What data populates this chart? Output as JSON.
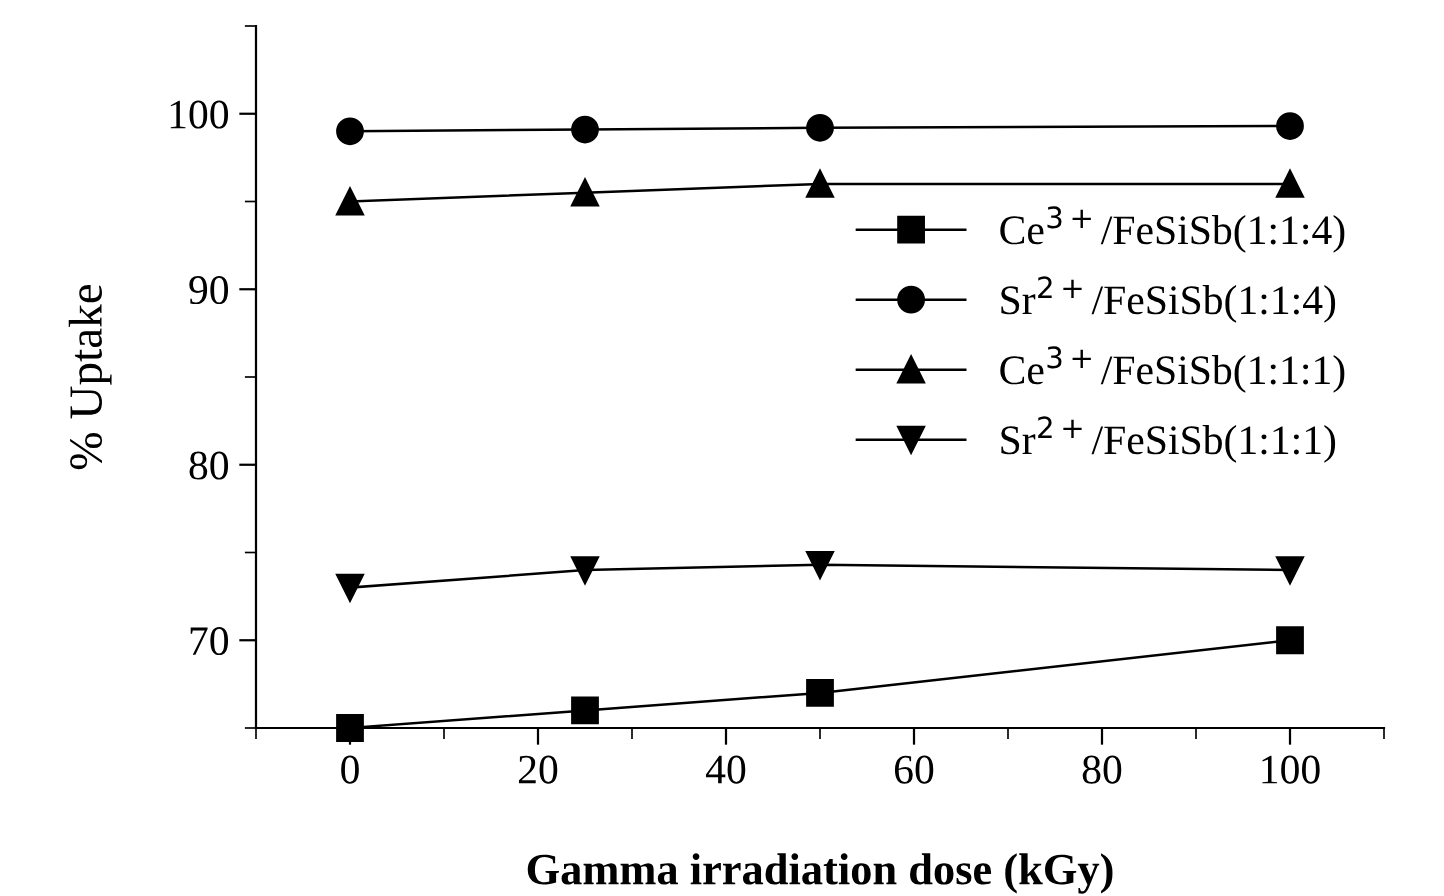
{
  "chart_data": {
    "type": "line",
    "xlabel": "Gamma irradiation dose (kGy)",
    "ylabel": "% Uptake",
    "x": [
      0,
      25,
      50,
      100
    ],
    "series": [
      {
        "name": "Ce$^{3+}$/FeSiSb(1:1:4)",
        "color": "#000000",
        "marker": "square",
        "values": [
          65,
          66,
          67,
          70
        ]
      },
      {
        "name": "Sr$^{2+}$/FeSiSb(1:1:4)",
        "color": "#000000",
        "marker": "circle",
        "values": [
          99,
          99.1,
          99.2,
          99.3
        ]
      },
      {
        "name": "Ce$^{3+}$/FeSiSb(1:1:1)",
        "color": "#000000",
        "marker": "triangle",
        "values": [
          95,
          95.5,
          96,
          96
        ]
      },
      {
        "name": "Sr$^{2+}$/FeSiSb(1:1:1)",
        "color": "#000000",
        "marker": "triangle_down",
        "values": [
          73,
          74,
          74.3,
          74
        ]
      }
    ],
    "xlim": [
      -10,
      110
    ],
    "xticks": [
      0,
      20,
      40,
      60,
      80,
      100
    ],
    "ylim": [
      65,
      105
    ],
    "yticks": [
      70,
      80,
      90,
      100
    ],
    "grid": false,
    "legend": "right",
    "line_style": "solid"
  }
}
